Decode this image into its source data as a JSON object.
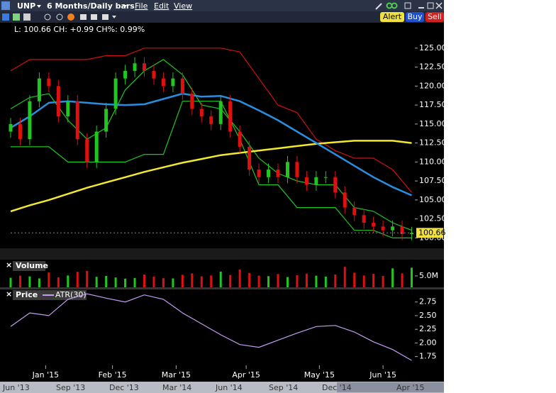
{
  "header": {
    "symbol": "UNP",
    "period": "6 Months/Daily bars",
    "menus": [
      "File",
      "Edit",
      "View"
    ],
    "buttons": [
      "Alert",
      "Buy",
      "Sell"
    ]
  },
  "info": "L: 100.66 CH: +0.99 CH%: 0.99%",
  "last_price": 100.66,
  "navigator": {
    "labels": [
      "Jun '13",
      "Sep '13",
      "Dec '13",
      "Mar '14",
      "Jun '14",
      "Sep '14",
      "Dec '14",
      "Apr '15"
    ]
  },
  "chart_data": [
    {
      "type": "candlestick",
      "up_color": "#1ec81e",
      "down_color": "#e01010",
      "x": [
        0,
        3,
        6,
        9,
        12,
        15,
        18,
        21,
        24,
        27,
        30,
        33,
        36,
        39,
        42,
        45,
        48,
        51,
        54,
        57,
        60,
        63,
        66,
        69,
        72,
        75,
        78,
        81,
        84,
        87,
        90,
        93,
        96,
        99,
        102,
        105,
        108,
        111,
        114,
        117,
        120,
        123,
        126
      ],
      "open": [
        114,
        115,
        113,
        118,
        121,
        120,
        116,
        118,
        113,
        110,
        114,
        117,
        121,
        122,
        123,
        122,
        121,
        120,
        121,
        119,
        117,
        116,
        115,
        118,
        114,
        112,
        109,
        108,
        109,
        108,
        110,
        108,
        107,
        108,
        108,
        106,
        104,
        103,
        102,
        101.5,
        101,
        101.5,
        100.5
      ],
      "high": [
        115.8,
        115.8,
        118.8,
        121.8,
        121.8,
        120.8,
        118.8,
        118.8,
        113.8,
        114.8,
        117.8,
        121.8,
        122.8,
        123.8,
        123.8,
        122.8,
        121.8,
        121.8,
        121.8,
        119.8,
        117.8,
        116.8,
        118.8,
        118.8,
        114.8,
        112.8,
        109.8,
        109.8,
        109.8,
        110.8,
        110.8,
        108.8,
        108.8,
        108.8,
        108.8,
        106.8,
        104.8,
        103.8,
        102.8,
        102.3,
        102.3,
        102.3,
        101.46
      ],
      "low": [
        113.2,
        112.2,
        112.2,
        117.2,
        119.2,
        115.2,
        115.2,
        112.2,
        109.2,
        109.2,
        113.2,
        116.2,
        120.2,
        121.2,
        121.2,
        120.2,
        119.2,
        119.2,
        118.2,
        116.2,
        115.2,
        114.2,
        114.2,
        113.2,
        111.2,
        108.2,
        107.2,
        107.2,
        107.2,
        107.2,
        107.2,
        106.2,
        106.2,
        107.2,
        105.2,
        103.2,
        102.2,
        101.2,
        100.7,
        100.2,
        100.2,
        99.7,
        99.7
      ],
      "close": [
        115,
        113,
        118,
        121,
        120,
        116,
        118,
        113,
        110,
        114,
        117,
        121,
        122,
        123,
        122,
        121,
        120,
        121,
        119,
        117,
        116,
        115,
        118,
        114,
        112,
        109,
        108,
        109,
        108,
        110,
        108,
        107,
        108,
        108,
        106,
        104,
        103,
        102,
        101.5,
        101,
        101.5,
        100.5,
        100.66
      ],
      "overlay_x": [
        0,
        6,
        12,
        18,
        24,
        30,
        36,
        42,
        48,
        54,
        60,
        66,
        72,
        78,
        84,
        90,
        96,
        102,
        108,
        114,
        120,
        126
      ],
      "overlays": [
        {
          "color": "#d01010",
          "values": [
            122,
            123.5,
            123.5,
            123.5,
            123.5,
            124,
            124,
            125,
            125,
            125,
            125,
            125,
            124.5,
            121,
            117.5,
            116.5,
            113,
            111.5,
            110.5,
            110.5,
            109,
            106
          ]
        },
        {
          "color": "#1ec81e",
          "values": [
            112,
            112,
            112,
            110,
            110,
            110,
            110,
            111,
            111,
            118,
            118,
            118,
            113,
            107,
            107,
            104,
            104,
            104,
            101,
            101,
            100,
            100
          ]
        },
        {
          "color": "#1ec81e",
          "values": [
            117,
            118.5,
            119,
            115.5,
            113,
            114.5,
            119.5,
            122,
            123.5,
            121.5,
            117.5,
            117,
            114,
            110.5,
            108.5,
            107.5,
            107,
            107,
            104,
            103.5,
            102,
            101
          ]
        },
        {
          "color": "#f2e830",
          "values": [
            103.5,
            104.3,
            105,
            105.8,
            106.6,
            107.3,
            108,
            108.7,
            109.3,
            109.9,
            110.4,
            110.9,
            111.2,
            111.5,
            111.8,
            112.1,
            112.4,
            112.6,
            112.8,
            112.8,
            112.8,
            112.5
          ]
        },
        {
          "color": "#2a8ee0",
          "values": [
            114.5,
            116,
            117.8,
            118,
            117.8,
            117.6,
            117.5,
            117.6,
            118.3,
            119,
            118.6,
            118.7,
            118,
            116.8,
            115.5,
            114,
            112.5,
            111,
            109.5,
            108,
            106.7,
            105.6
          ]
        }
      ],
      "xlim": [
        0,
        127
      ],
      "xticks": [
        {
          "value": 11,
          "label": "Jan '15"
        },
        {
          "value": 32,
          "label": "Feb '15"
        },
        {
          "value": 52,
          "label": "Mar '15"
        },
        {
          "value": 74,
          "label": "Apr '15"
        },
        {
          "value": 97,
          "label": "May '15"
        },
        {
          "value": 117,
          "label": "Jun '15"
        }
      ],
      "ylim": [
        99.1,
        127.6
      ],
      "yticks": [
        {
          "value": 100,
          "label": "100.00"
        },
        {
          "value": 102.5,
          "label": "102.50"
        },
        {
          "value": 105,
          "label": "105.00"
        },
        {
          "value": 107.5,
          "label": "107.50"
        },
        {
          "value": 110,
          "label": "110.00"
        },
        {
          "value": 112.5,
          "label": "112.50"
        },
        {
          "value": 115,
          "label": "115.00"
        },
        {
          "value": 117.5,
          "label": "117.50"
        },
        {
          "value": 120,
          "label": "120.00"
        },
        {
          "value": 122.5,
          "label": "122.50"
        },
        {
          "value": 125,
          "label": "125.00"
        }
      ]
    },
    {
      "type": "bar",
      "title": "Volume",
      "x": [
        0,
        3,
        6,
        9,
        12,
        15,
        18,
        21,
        24,
        27,
        30,
        33,
        36,
        39,
        42,
        45,
        48,
        51,
        54,
        57,
        60,
        63,
        66,
        69,
        72,
        75,
        78,
        81,
        84,
        87,
        90,
        93,
        96,
        99,
        102,
        105,
        108,
        111,
        114,
        117,
        120,
        123,
        126
      ],
      "values": [
        4200000,
        5100000,
        4800000,
        3900000,
        6500000,
        4400000,
        5200000,
        6800000,
        7200000,
        4600000,
        5000000,
        4300000,
        3800000,
        4100000,
        5600000,
        4700000,
        4000000,
        3900000,
        5500000,
        6100000,
        4800000,
        5200000,
        6900000,
        5400000,
        7800000,
        6300000,
        5100000,
        4900000,
        5800000,
        4500000,
        5300000,
        6000000,
        5100000,
        4700000,
        5600000,
        9000000,
        6400000,
        5200000,
        5900000,
        5000000,
        8300000,
        6100000,
        8600000
      ],
      "xlim": [
        0,
        127
      ],
      "ylim": [
        0,
        10900000
      ],
      "yticks": [
        {
          "value": 5000000,
          "label": "5.0M"
        }
      ]
    },
    {
      "type": "line",
      "title": "Price",
      "x": [
        0,
        6,
        12,
        18,
        24,
        30,
        36,
        42,
        48,
        54,
        60,
        66,
        72,
        78,
        84,
        90,
        96,
        102,
        108,
        114,
        120,
        126
      ],
      "series": [
        {
          "name": "ATR(30)",
          "color": "#c49cf5",
          "values": [
            2.3,
            2.55,
            2.5,
            2.8,
            2.9,
            2.82,
            2.75,
            2.88,
            2.8,
            2.55,
            2.35,
            2.15,
            1.97,
            1.92,
            2.05,
            2.18,
            2.3,
            2.32,
            2.2,
            2.02,
            1.88,
            1.68
          ]
        }
      ],
      "xlim": [
        0,
        127
      ],
      "ylim": [
        1.59,
        2.98
      ],
      "yticks": [
        1.75,
        {
          "value": 2,
          "label": "2.00"
        },
        2.25,
        {
          "value": 2.5,
          "label": "2.50"
        },
        2.75
      ]
    }
  ]
}
